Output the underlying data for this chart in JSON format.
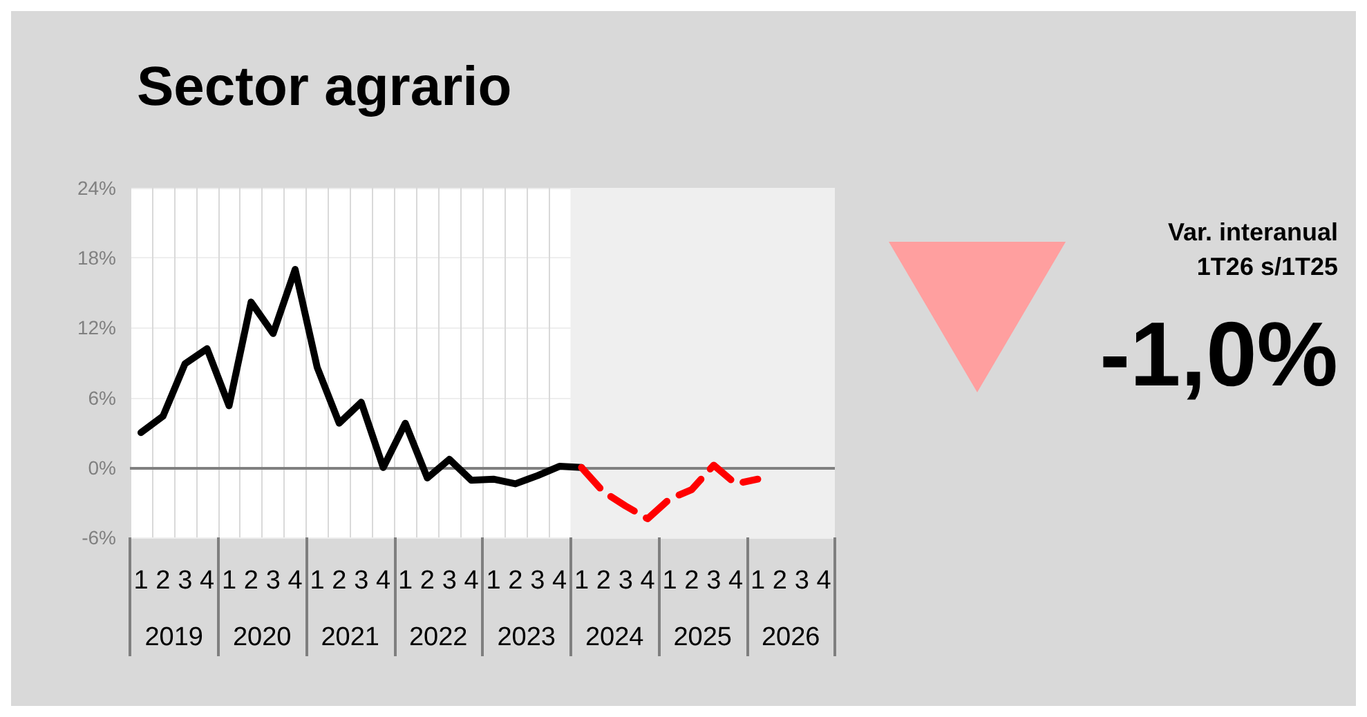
{
  "chart_data": [
    {
      "type": "line",
      "title": "Sector agrario",
      "categories": [
        "1",
        "2",
        "3",
        "4",
        "1",
        "2",
        "3",
        "4",
        "1",
        "2",
        "3",
        "4",
        "1",
        "2",
        "3",
        "4",
        "1",
        "2",
        "3",
        "4",
        "1",
        "2",
        "3",
        "4",
        "1",
        "2",
        "3",
        "4",
        "1",
        "2",
        "3",
        "4"
      ],
      "annotations": [
        "2019",
        "2020",
        "2021",
        "2022",
        "2023",
        "2024",
        "2025",
        "2026"
      ],
      "series": [
        {
          "color": "#000000",
          "line_style": "solid",
          "values": [
            3.0,
            4.4,
            8.9,
            10.2,
            5.3,
            14.2,
            11.5,
            17.0,
            8.6,
            3.8,
            5.6,
            0.0,
            3.8,
            -0.9,
            0.7,
            -1.1,
            -1.0,
            -1.4,
            -0.7,
            0.1,
            0.0,
            null,
            null,
            null,
            null,
            null,
            null,
            null,
            null,
            null,
            null,
            null
          ]
        },
        {
          "color": "#ff0000",
          "line_style": "dashed",
          "values": [
            null,
            null,
            null,
            null,
            null,
            null,
            null,
            null,
            null,
            null,
            null,
            null,
            null,
            null,
            null,
            null,
            null,
            null,
            null,
            null,
            0.0,
            -2.1,
            -3.3,
            -4.4,
            -2.7,
            -1.9,
            0.2,
            -1.4,
            -1.0,
            null,
            null,
            null
          ]
        }
      ],
      "ylim": [
        -6,
        24
      ],
      "yticks": [
        {
          "value": -6,
          "label": "-6%"
        },
        {
          "value": 0,
          "label": "0%"
        },
        {
          "value": 6,
          "label": "6%"
        },
        {
          "value": 12,
          "label": "12%"
        },
        {
          "value": 18,
          "label": "18%"
        },
        {
          "value": 24,
          "label": "24%"
        }
      ],
      "ref_lines": [
        {
          "axis": "y",
          "value": 0,
          "color": "#808080"
        }
      ],
      "grid": true,
      "marker": "none"
    },
    {
      "type": "other",
      "title": "Var. interanual\n1T26 s/1T25",
      "annotations": [
        "-1,0%"
      ]
    }
  ]
}
